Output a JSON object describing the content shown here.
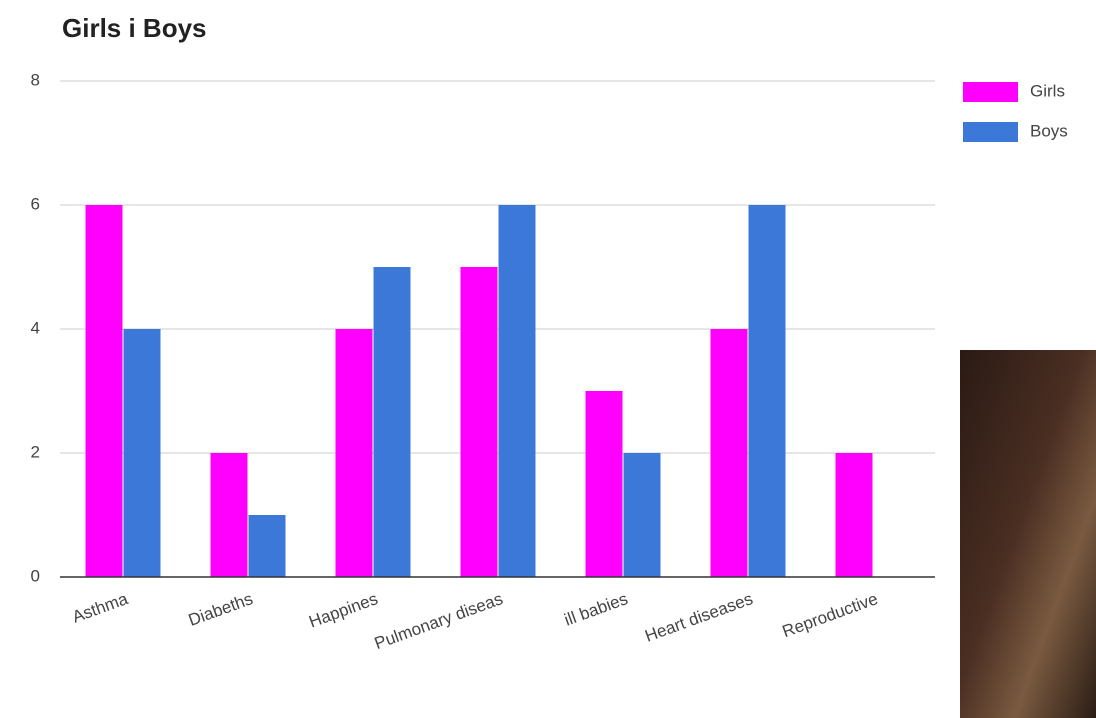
{
  "chart_data": {
    "type": "bar",
    "title": "Girls i Boys",
    "categories": [
      "Asthma",
      "Diabeths",
      "Happines",
      "Pulmonary diseas",
      "ill babies",
      "Heart diseases",
      "Reproductive"
    ],
    "series": [
      {
        "name": "Girls",
        "color": "#ff00ff",
        "values": [
          6,
          2,
          4,
          5,
          3,
          4,
          2
        ]
      },
      {
        "name": "Boys",
        "color": "#3c78d8",
        "values": [
          4,
          1,
          5,
          6,
          2,
          6,
          0
        ]
      }
    ],
    "ylim": [
      0,
      8
    ],
    "yticks": [
      0,
      2,
      4,
      6,
      8
    ],
    "grid": true,
    "legend": "right"
  }
}
